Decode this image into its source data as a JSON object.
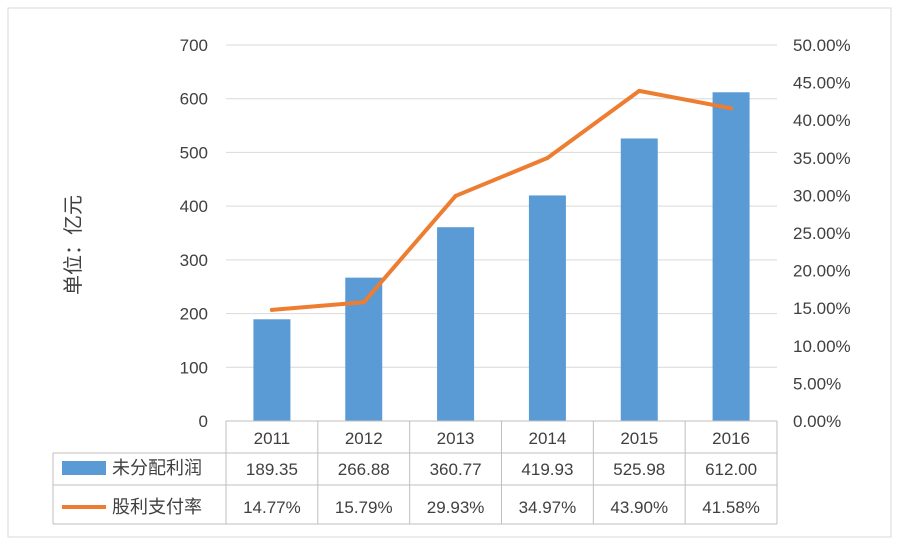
{
  "chart_data": {
    "type": "bar",
    "categories": [
      "2011",
      "2012",
      "2013",
      "2014",
      "2015",
      "2016"
    ],
    "series": [
      {
        "name": "未分配利润",
        "type": "bar",
        "axis": "left",
        "values": [
          189.35,
          266.88,
          360.77,
          419.93,
          525.98,
          612.0
        ],
        "labels": [
          "189.35",
          "266.88",
          "360.77",
          "419.93",
          "525.98",
          "612.00"
        ],
        "color": "#5B9BD5"
      },
      {
        "name": "股利支付率",
        "type": "line",
        "axis": "right",
        "values": [
          14.77,
          15.79,
          29.93,
          34.97,
          43.9,
          41.58
        ],
        "labels": [
          "14.77%",
          "15.79%",
          "29.93%",
          "34.97%",
          "43.90%",
          "41.58%"
        ],
        "color": "#ED7D31"
      }
    ],
    "ylabel": "单位：亿元",
    "ylim": [
      0,
      700
    ],
    "y_ticks": [
      "0",
      "100",
      "200",
      "300",
      "400",
      "500",
      "600",
      "700"
    ],
    "y2lim": [
      0,
      50
    ],
    "y2_ticks": [
      "0.00%",
      "5.00%",
      "10.00%",
      "15.00%",
      "20.00%",
      "25.00%",
      "30.00%",
      "35.00%",
      "40.00%",
      "45.00%",
      "50.00%"
    ],
    "grid": true,
    "legend": "data table below chart"
  }
}
